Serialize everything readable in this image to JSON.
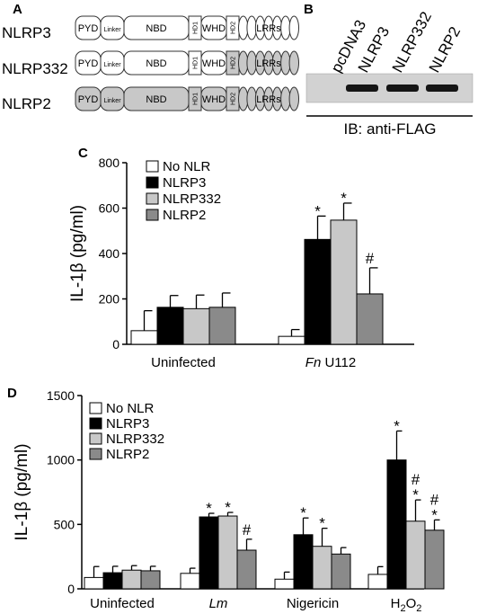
{
  "panel_a": {
    "letter": "A",
    "constructs": [
      {
        "name": "NLRP3",
        "domains": [
          "PYD",
          "Linker",
          "NBD",
          "HD1",
          "WHD",
          "HD2",
          "LRRs"
        ],
        "shaded": []
      },
      {
        "name": "NLRP332",
        "domains": [
          "PYD",
          "Linker",
          "NBD",
          "HD1",
          "WHD",
          "HD2",
          "LRRs"
        ],
        "shaded": [
          "HD2",
          "LRRs"
        ]
      },
      {
        "name": "NLRP2",
        "domains": [
          "PYD",
          "Linker",
          "NBD",
          "HD1",
          "WHD",
          "HD2",
          "LRRs"
        ],
        "shaded": [
          "PYD",
          "Linker",
          "NBD",
          "HD1",
          "WHD",
          "HD2",
          "LRRs"
        ]
      }
    ]
  },
  "panel_b": {
    "letter": "B",
    "lanes": [
      "pcDNA3",
      "NLRP3",
      "NLRP332",
      "NLRP2"
    ],
    "bands_present": [
      false,
      true,
      true,
      true
    ],
    "footer": "IB: anti-FLAG"
  },
  "colors": {
    "No NLR": "#ffffff",
    "NLRP3": "#000000",
    "NLRP332": "#c8c8c8",
    "NLRP2": "#8a8a8a"
  },
  "chart_data": [
    {
      "letter": "C",
      "type": "bar",
      "ylabel": "IL-1β (pg/ml)",
      "ylim": [
        0,
        800
      ],
      "yticks": [
        0,
        200,
        400,
        600,
        800
      ],
      "groups": [
        {
          "label": "Uninfected",
          "label_italic": "",
          "label_rest": ""
        },
        {
          "label": "",
          "label_italic": "Fn",
          "label_rest": " U112"
        }
      ],
      "legend": [
        "No NLR",
        "NLRP3",
        "NLRP332",
        "NLRP2"
      ],
      "series": [
        {
          "name": "No NLR",
          "values": [
            60,
            35
          ],
          "errors": [
            88,
            30
          ],
          "sig": [
            "",
            ""
          ]
        },
        {
          "name": "NLRP3",
          "values": [
            163,
            462
          ],
          "errors": [
            52,
            103
          ],
          "sig": [
            "",
            "*"
          ]
        },
        {
          "name": "NLRP332",
          "values": [
            157,
            547
          ],
          "errors": [
            60,
            75
          ],
          "sig": [
            "",
            "*"
          ]
        },
        {
          "name": "NLRP2",
          "values": [
            163,
            222
          ],
          "errors": [
            63,
            115
          ],
          "sig": [
            "",
            "#"
          ]
        }
      ]
    },
    {
      "letter": "D",
      "type": "bar",
      "ylabel": "IL-1β (pg/ml)",
      "ylim": [
        0,
        1500
      ],
      "yticks": [
        0,
        500,
        1000,
        1500
      ],
      "groups": [
        {
          "label": "Uninfected",
          "label_italic": "",
          "label_rest": ""
        },
        {
          "label": "",
          "label_italic": "Lm",
          "label_rest": ""
        },
        {
          "label": "Nigericin",
          "label_italic": "",
          "label_rest": ""
        },
        {
          "label": "",
          "label_italic": "",
          "label_rest": "",
          "chem": [
            "H",
            "2",
            "O",
            "2"
          ]
        }
      ],
      "legend": [
        "No NLR",
        "NLRP3",
        "NLRP332",
        "NLRP2"
      ],
      "series": [
        {
          "name": "No NLR",
          "values": [
            88,
            120,
            75,
            112
          ],
          "errors": [
            85,
            40,
            55,
            60
          ],
          "sig": [
            "",
            "",
            "",
            ""
          ]
        },
        {
          "name": "NLRP3",
          "values": [
            125,
            558,
            420,
            1000
          ],
          "errors": [
            50,
            28,
            130,
            225
          ],
          "sig": [
            "",
            "*",
            "*",
            "*"
          ]
        },
        {
          "name": "NLRP332",
          "values": [
            145,
            565,
            330,
            525
          ],
          "errors": [
            35,
            28,
            140,
            165
          ],
          "sig": [
            "",
            "*",
            "*",
            "#*"
          ]
        },
        {
          "name": "NLRP2",
          "values": [
            140,
            300,
            270,
            455
          ],
          "errors": [
            35,
            85,
            50,
            80
          ],
          "sig": [
            "",
            "#",
            "",
            "#*"
          ]
        }
      ]
    }
  ]
}
